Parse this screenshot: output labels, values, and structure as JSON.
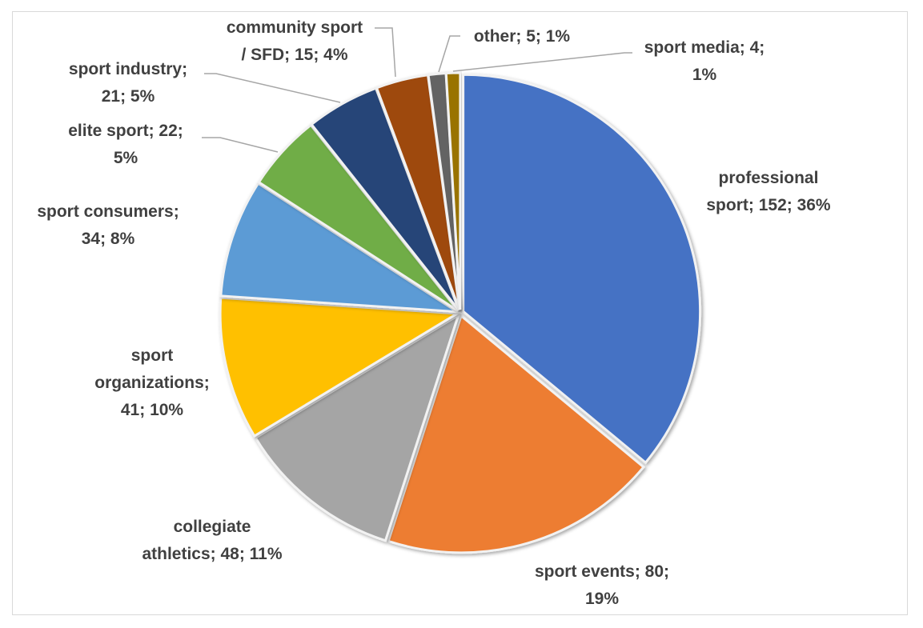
{
  "chart_data": {
    "type": "pie",
    "title": "",
    "start_angle": "12 o'clock",
    "direction": "clockwise",
    "slices": [
      {
        "name": "professional sport",
        "value": 152,
        "percent": "36%",
        "label_lines": [
          "professional",
          "sport; 152; 36%"
        ],
        "color": "#4472C4"
      },
      {
        "name": "sport events",
        "value": 80,
        "percent": "19%",
        "label_lines": [
          "sport events; 80;",
          "19%"
        ],
        "color": "#ED7D31"
      },
      {
        "name": "collegiate athletics",
        "value": 48,
        "percent": "11%",
        "label_lines": [
          "collegiate",
          "athletics; 48; 11%"
        ],
        "color": "#A5A5A5"
      },
      {
        "name": "sport organizations",
        "value": 41,
        "percent": "10%",
        "label_lines": [
          "sport",
          "organizations;",
          "41; 10%"
        ],
        "color": "#FFC000"
      },
      {
        "name": "sport consumers",
        "value": 34,
        "percent": "8%",
        "label_lines": [
          "sport consumers;",
          "34; 8%"
        ],
        "color": "#5B9BD5"
      },
      {
        "name": "elite sport",
        "value": 22,
        "percent": "5%",
        "label_lines": [
          "elite sport; 22;",
          "5%"
        ],
        "color": "#70AD47"
      },
      {
        "name": "sport industry",
        "value": 21,
        "percent": "5%",
        "label_lines": [
          "sport industry;",
          "21; 5%"
        ],
        "color": "#264478"
      },
      {
        "name": "community sport / SFD",
        "value": 15,
        "percent": "4%",
        "label_lines": [
          "community sport",
          "/ SFD; 15; 4%"
        ],
        "color": "#9E480E"
      },
      {
        "name": "other",
        "value": 5,
        "percent": "1%",
        "label_lines": [
          "other; 5; 1%"
        ],
        "color": "#636363"
      },
      {
        "name": "sport media",
        "value": 4,
        "percent": "1%",
        "label_lines": [
          "sport media; 4;",
          "1%"
        ],
        "color": "#997300"
      }
    ]
  }
}
